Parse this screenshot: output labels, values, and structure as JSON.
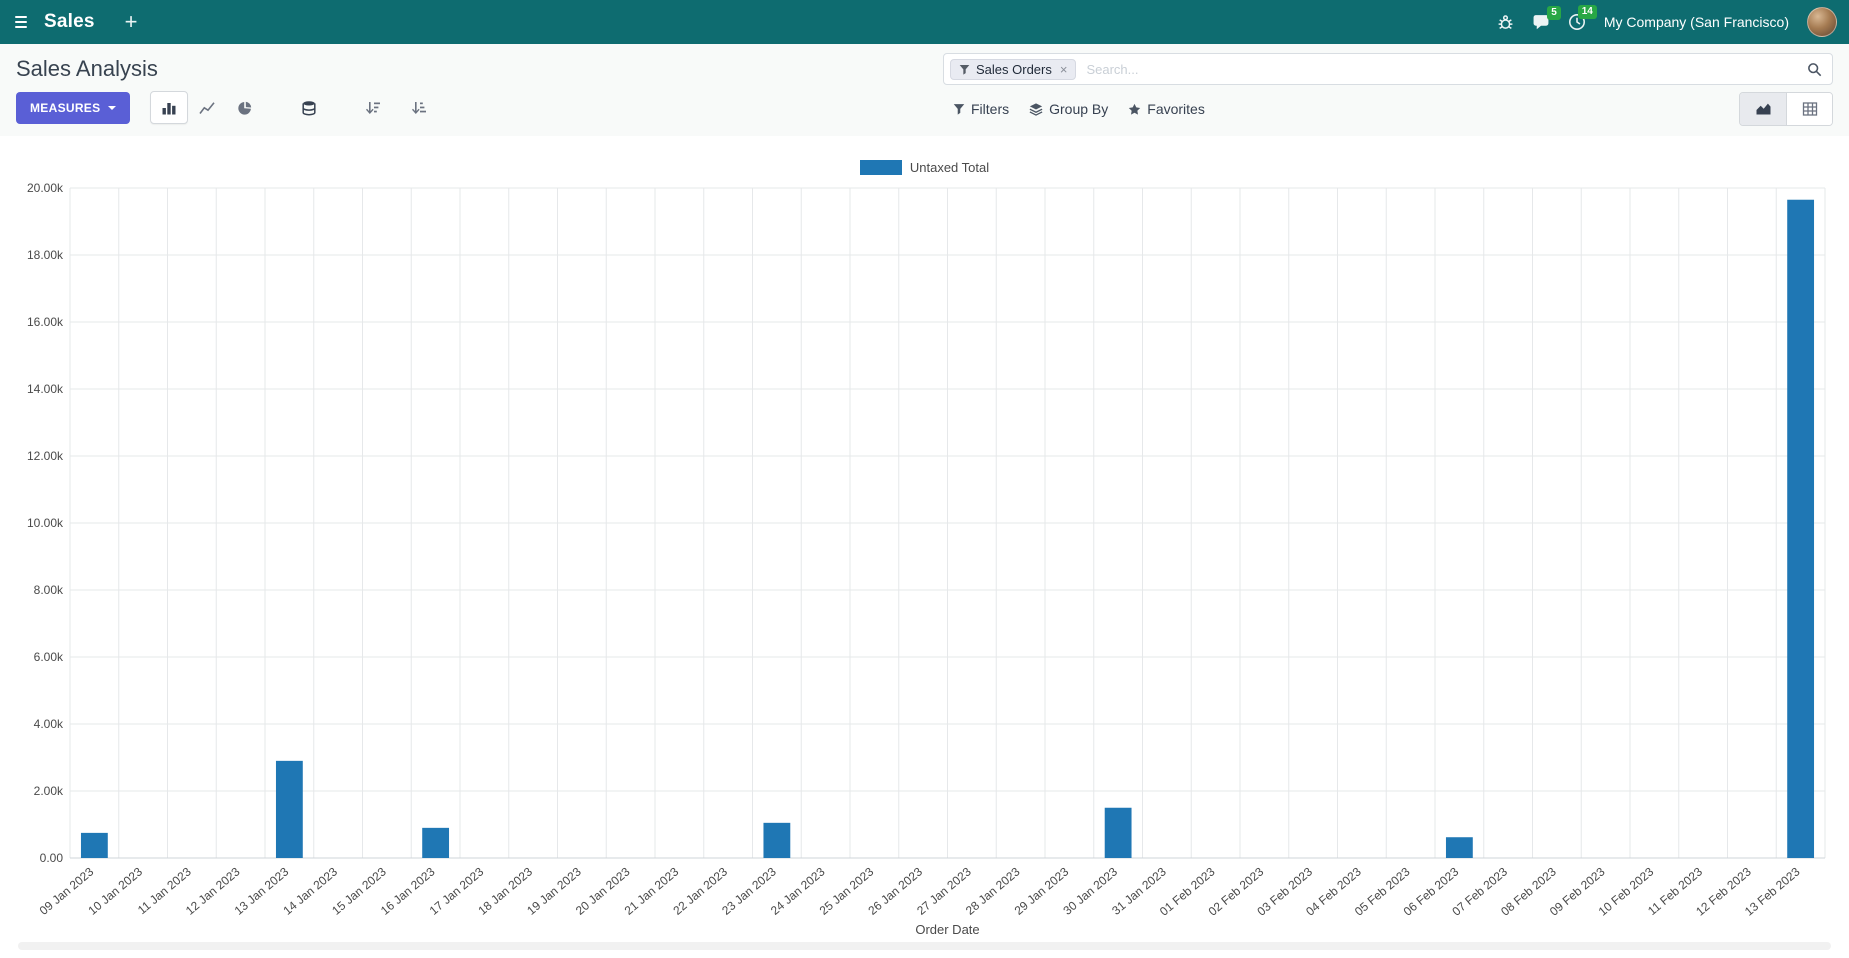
{
  "navbar": {
    "app_name": "Sales",
    "plus": "+",
    "messages_badge": "5",
    "activities_badge": "14",
    "company": "My Company (San Francisco)"
  },
  "control_panel": {
    "breadcrumb": "Sales Analysis",
    "measures_label": "MEASURES",
    "search": {
      "facet_label": "Sales Orders",
      "facet_remove": "×",
      "placeholder": "Search..."
    },
    "filters_label": "Filters",
    "group_by_label": "Group By",
    "favorites_label": "Favorites"
  },
  "colors": {
    "navbar_bg": "#0e6c70",
    "primary_button_bg": "#5a5fd6",
    "badge_bg": "#28a745",
    "bar_color": "#1f77b4"
  },
  "chart_data": {
    "type": "bar",
    "title": "",
    "legend_position": "top",
    "grid": true,
    "xlabel": "Order Date",
    "ylabel": "",
    "ylim": [
      0,
      20000
    ],
    "ytick_step": 2000,
    "categories": [
      "09 Jan 2023",
      "10 Jan 2023",
      "11 Jan 2023",
      "12 Jan 2023",
      "13 Jan 2023",
      "14 Jan 2023",
      "15 Jan 2023",
      "16 Jan 2023",
      "17 Jan 2023",
      "18 Jan 2023",
      "19 Jan 2023",
      "20 Jan 2023",
      "21 Jan 2023",
      "22 Jan 2023",
      "23 Jan 2023",
      "24 Jan 2023",
      "25 Jan 2023",
      "26 Jan 2023",
      "27 Jan 2023",
      "28 Jan 2023",
      "29 Jan 2023",
      "30 Jan 2023",
      "31 Jan 2023",
      "01 Feb 2023",
      "02 Feb 2023",
      "03 Feb 2023",
      "04 Feb 2023",
      "05 Feb 2023",
      "06 Feb 2023",
      "07 Feb 2023",
      "08 Feb 2023",
      "09 Feb 2023",
      "10 Feb 2023",
      "11 Feb 2023",
      "12 Feb 2023",
      "13 Feb 2023"
    ],
    "series": [
      {
        "name": "Untaxed Total",
        "values": [
          750,
          0,
          0,
          0,
          2900,
          0,
          0,
          900,
          0,
          0,
          0,
          0,
          0,
          0,
          1050,
          0,
          0,
          0,
          0,
          0,
          0,
          1500,
          0,
          0,
          0,
          0,
          0,
          0,
          620,
          0,
          0,
          0,
          0,
          0,
          0,
          19650
        ]
      }
    ],
    "bar_color": "#1f77b4"
  }
}
